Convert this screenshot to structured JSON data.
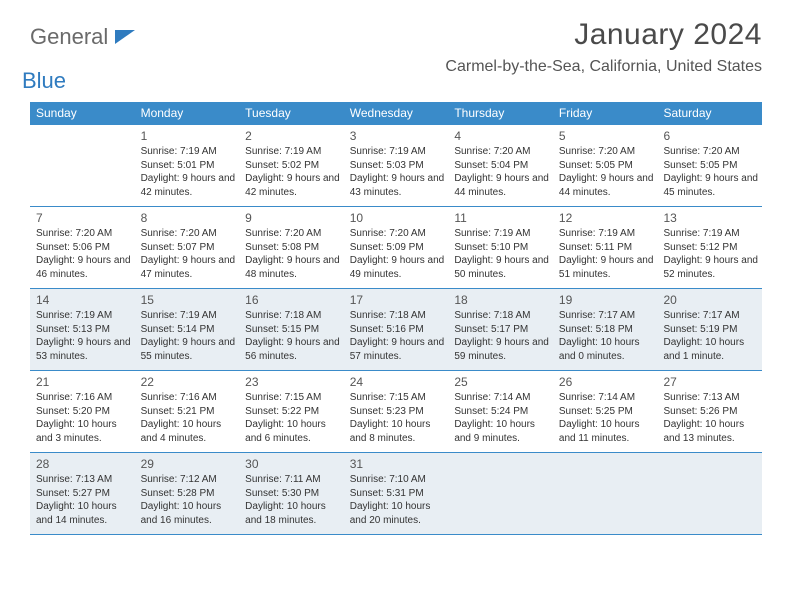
{
  "logo": {
    "word1": "General",
    "word2": "Blue"
  },
  "title": "January 2024",
  "location": "Carmel-by-the-Sea, California, United States",
  "colors": {
    "header_bg": "#3a8bc9",
    "shaded_bg": "#e8eef3",
    "text": "#333333",
    "title": "#4a4a4a"
  },
  "weekdays": [
    "Sunday",
    "Monday",
    "Tuesday",
    "Wednesday",
    "Thursday",
    "Friday",
    "Saturday"
  ],
  "weeks": [
    [
      {
        "n": "",
        "sr": "",
        "ss": "",
        "dl": ""
      },
      {
        "n": "1",
        "sr": "Sunrise: 7:19 AM",
        "ss": "Sunset: 5:01 PM",
        "dl": "Daylight: 9 hours and 42 minutes."
      },
      {
        "n": "2",
        "sr": "Sunrise: 7:19 AM",
        "ss": "Sunset: 5:02 PM",
        "dl": "Daylight: 9 hours and 42 minutes."
      },
      {
        "n": "3",
        "sr": "Sunrise: 7:19 AM",
        "ss": "Sunset: 5:03 PM",
        "dl": "Daylight: 9 hours and 43 minutes."
      },
      {
        "n": "4",
        "sr": "Sunrise: 7:20 AM",
        "ss": "Sunset: 5:04 PM",
        "dl": "Daylight: 9 hours and 44 minutes."
      },
      {
        "n": "5",
        "sr": "Sunrise: 7:20 AM",
        "ss": "Sunset: 5:05 PM",
        "dl": "Daylight: 9 hours and 44 minutes."
      },
      {
        "n": "6",
        "sr": "Sunrise: 7:20 AM",
        "ss": "Sunset: 5:05 PM",
        "dl": "Daylight: 9 hours and 45 minutes."
      }
    ],
    [
      {
        "n": "7",
        "sr": "Sunrise: 7:20 AM",
        "ss": "Sunset: 5:06 PM",
        "dl": "Daylight: 9 hours and 46 minutes."
      },
      {
        "n": "8",
        "sr": "Sunrise: 7:20 AM",
        "ss": "Sunset: 5:07 PM",
        "dl": "Daylight: 9 hours and 47 minutes."
      },
      {
        "n": "9",
        "sr": "Sunrise: 7:20 AM",
        "ss": "Sunset: 5:08 PM",
        "dl": "Daylight: 9 hours and 48 minutes."
      },
      {
        "n": "10",
        "sr": "Sunrise: 7:20 AM",
        "ss": "Sunset: 5:09 PM",
        "dl": "Daylight: 9 hours and 49 minutes."
      },
      {
        "n": "11",
        "sr": "Sunrise: 7:19 AM",
        "ss": "Sunset: 5:10 PM",
        "dl": "Daylight: 9 hours and 50 minutes."
      },
      {
        "n": "12",
        "sr": "Sunrise: 7:19 AM",
        "ss": "Sunset: 5:11 PM",
        "dl": "Daylight: 9 hours and 51 minutes."
      },
      {
        "n": "13",
        "sr": "Sunrise: 7:19 AM",
        "ss": "Sunset: 5:12 PM",
        "dl": "Daylight: 9 hours and 52 minutes."
      }
    ],
    [
      {
        "n": "14",
        "sr": "Sunrise: 7:19 AM",
        "ss": "Sunset: 5:13 PM",
        "dl": "Daylight: 9 hours and 53 minutes."
      },
      {
        "n": "15",
        "sr": "Sunrise: 7:19 AM",
        "ss": "Sunset: 5:14 PM",
        "dl": "Daylight: 9 hours and 55 minutes."
      },
      {
        "n": "16",
        "sr": "Sunrise: 7:18 AM",
        "ss": "Sunset: 5:15 PM",
        "dl": "Daylight: 9 hours and 56 minutes."
      },
      {
        "n": "17",
        "sr": "Sunrise: 7:18 AM",
        "ss": "Sunset: 5:16 PM",
        "dl": "Daylight: 9 hours and 57 minutes."
      },
      {
        "n": "18",
        "sr": "Sunrise: 7:18 AM",
        "ss": "Sunset: 5:17 PM",
        "dl": "Daylight: 9 hours and 59 minutes."
      },
      {
        "n": "19",
        "sr": "Sunrise: 7:17 AM",
        "ss": "Sunset: 5:18 PM",
        "dl": "Daylight: 10 hours and 0 minutes."
      },
      {
        "n": "20",
        "sr": "Sunrise: 7:17 AM",
        "ss": "Sunset: 5:19 PM",
        "dl": "Daylight: 10 hours and 1 minute."
      }
    ],
    [
      {
        "n": "21",
        "sr": "Sunrise: 7:16 AM",
        "ss": "Sunset: 5:20 PM",
        "dl": "Daylight: 10 hours and 3 minutes."
      },
      {
        "n": "22",
        "sr": "Sunrise: 7:16 AM",
        "ss": "Sunset: 5:21 PM",
        "dl": "Daylight: 10 hours and 4 minutes."
      },
      {
        "n": "23",
        "sr": "Sunrise: 7:15 AM",
        "ss": "Sunset: 5:22 PM",
        "dl": "Daylight: 10 hours and 6 minutes."
      },
      {
        "n": "24",
        "sr": "Sunrise: 7:15 AM",
        "ss": "Sunset: 5:23 PM",
        "dl": "Daylight: 10 hours and 8 minutes."
      },
      {
        "n": "25",
        "sr": "Sunrise: 7:14 AM",
        "ss": "Sunset: 5:24 PM",
        "dl": "Daylight: 10 hours and 9 minutes."
      },
      {
        "n": "26",
        "sr": "Sunrise: 7:14 AM",
        "ss": "Sunset: 5:25 PM",
        "dl": "Daylight: 10 hours and 11 minutes."
      },
      {
        "n": "27",
        "sr": "Sunrise: 7:13 AM",
        "ss": "Sunset: 5:26 PM",
        "dl": "Daylight: 10 hours and 13 minutes."
      }
    ],
    [
      {
        "n": "28",
        "sr": "Sunrise: 7:13 AM",
        "ss": "Sunset: 5:27 PM",
        "dl": "Daylight: 10 hours and 14 minutes."
      },
      {
        "n": "29",
        "sr": "Sunrise: 7:12 AM",
        "ss": "Sunset: 5:28 PM",
        "dl": "Daylight: 10 hours and 16 minutes."
      },
      {
        "n": "30",
        "sr": "Sunrise: 7:11 AM",
        "ss": "Sunset: 5:30 PM",
        "dl": "Daylight: 10 hours and 18 minutes."
      },
      {
        "n": "31",
        "sr": "Sunrise: 7:10 AM",
        "ss": "Sunset: 5:31 PM",
        "dl": "Daylight: 10 hours and 20 minutes."
      },
      {
        "n": "",
        "sr": "",
        "ss": "",
        "dl": ""
      },
      {
        "n": "",
        "sr": "",
        "ss": "",
        "dl": ""
      },
      {
        "n": "",
        "sr": "",
        "ss": "",
        "dl": ""
      }
    ]
  ],
  "shaded_weeks": [
    2,
    4
  ]
}
